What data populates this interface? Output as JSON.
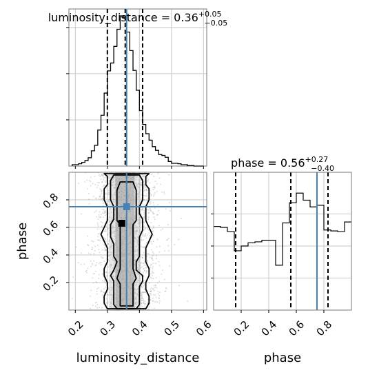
{
  "chart_data": {
    "type": "corner",
    "parameters": [
      "luminosity_distance",
      "phase"
    ],
    "truths": {
      "luminosity_distance": 0.36,
      "phase": 0.75
    },
    "ranges": {
      "luminosity_distance": [
        0.18,
        0.61
      ],
      "phase": [
        0.0,
        1.0
      ]
    },
    "grid": true,
    "panels": [
      {
        "name": "luminosity_distance-hist",
        "type": "step-histogram",
        "title": {
          "prefix": "luminosity_distance = 0.36",
          "sup": "+0.05",
          "sub": "−0.05"
        },
        "median": 0.36,
        "quantiles": [
          0.3,
          0.36,
          0.41
        ],
        "bin_edges": [
          0.19,
          0.2,
          0.21,
          0.22,
          0.23,
          0.24,
          0.25,
          0.26,
          0.27,
          0.28,
          0.29,
          0.3,
          0.31,
          0.32,
          0.33,
          0.34,
          0.35,
          0.36,
          0.37,
          0.38,
          0.39,
          0.4,
          0.41,
          0.42,
          0.43,
          0.44,
          0.45,
          0.46,
          0.47,
          0.48,
          0.49,
          0.5,
          0.51,
          0.52,
          0.53,
          0.54,
          0.55,
          0.56,
          0.57,
          0.58,
          0.59,
          0.6
        ],
        "counts": [
          3,
          3,
          5,
          8,
          12,
          18,
          33,
          45,
          78,
          110,
          158,
          206,
          223,
          259,
          296,
          325,
          322,
          290,
          250,
          207,
          164,
          120,
          90,
          70,
          56,
          42,
          34,
          25,
          23,
          19,
          10,
          6,
          6,
          5,
          3,
          3,
          1,
          1,
          0,
          0,
          0
        ],
        "ylim": [
          0,
          340
        ],
        "yticks": [
          0,
          100,
          200,
          300
        ]
      },
      {
        "name": "phase-hist",
        "type": "step-histogram",
        "title": {
          "prefix": "phase = 0.56",
          "sup": "+0.27",
          "sub": "−0.40"
        },
        "median": 0.56,
        "quantiles": [
          0.16,
          0.56,
          0.83
        ],
        "bin_edges": [
          0.0,
          0.05,
          0.1,
          0.15,
          0.2,
          0.25,
          0.3,
          0.35,
          0.4,
          0.45,
          0.5,
          0.55,
          0.6,
          0.65,
          0.7,
          0.75,
          0.8,
          0.85,
          0.9,
          0.95,
          1.0
        ],
        "counts": [
          261,
          258,
          245,
          185,
          200,
          210,
          213,
          218,
          218,
          140,
          272,
          335,
          365,
          343,
          322,
          327,
          250,
          247,
          245,
          275
        ],
        "ylim": [
          0,
          430
        ],
        "yticks": [
          100,
          200,
          300
        ]
      },
      {
        "name": "2d-density",
        "type": "contour-2d",
        "x_param": "luminosity_distance",
        "y_param": "phase",
        "xticks": [
          0.2,
          0.3,
          0.4,
          0.5,
          0.6
        ],
        "yticks": [
          0.2,
          0.4,
          0.6,
          0.8
        ],
        "point_cloud": {
          "center_x": 0.36,
          "sigma_x": 0.05,
          "n": 2000
        },
        "density_column_x": [
          0.325,
          0.385
        ],
        "contour_levels": [
          {
            "name": "inner",
            "x_left": [
              0.34,
              0.34,
              0.34,
              0.34,
              0.34,
              0.33,
              0.34,
              0.34,
              0.34,
              0.34,
              0.34,
              0.34,
              0.34,
              0.33,
              0.33,
              0.33,
              0.33,
              0.34
            ],
            "x_right": [
              0.38,
              0.38,
              0.38,
              0.38,
              0.38,
              0.39,
              0.38,
              0.38,
              0.38,
              0.38,
              0.38,
              0.38,
              0.38,
              0.39,
              0.39,
              0.39,
              0.39,
              0.38
            ],
            "y": [
              0.03,
              0.06,
              0.09,
              0.14,
              0.19,
              0.23,
              0.3,
              0.35,
              0.43,
              0.47,
              0.53,
              0.57,
              0.62,
              0.65,
              0.73,
              0.79,
              0.87,
              0.93
            ]
          },
          {
            "name": "middle",
            "x_left": [
              0.33,
              0.32,
              0.32,
              0.32,
              0.32,
              0.32,
              0.31,
              0.32,
              0.33,
              0.32,
              0.32,
              0.32,
              0.31,
              0.31,
              0.31,
              0.32,
              0.32,
              0.32,
              0.31,
              0.31,
              0.31,
              0.31,
              0.32
            ],
            "x_right": [
              0.39,
              0.4,
              0.4,
              0.4,
              0.4,
              0.41,
              0.41,
              0.39,
              0.39,
              0.4,
              0.4,
              0.4,
              0.4,
              0.41,
              0.41,
              0.41,
              0.4,
              0.4,
              0.41,
              0.41,
              0.41,
              0.41,
              0.4
            ],
            "y": [
              0.01,
              0.04,
              0.08,
              0.13,
              0.17,
              0.21,
              0.25,
              0.29,
              0.35,
              0.39,
              0.44,
              0.48,
              0.53,
              0.58,
              0.62,
              0.66,
              0.7,
              0.75,
              0.8,
              0.85,
              0.9,
              0.94,
              0.98
            ]
          },
          {
            "name": "outer",
            "x_left": [
              0.3,
              0.29,
              0.29,
              0.3,
              0.3,
              0.29,
              0.29,
              0.3,
              0.3,
              0.3,
              0.29,
              0.28,
              0.29,
              0.3,
              0.3,
              0.3,
              0.29,
              0.29,
              0.29,
              0.3,
              0.3,
              0.3,
              0.29
            ],
            "x_right": [
              0.42,
              0.43,
              0.43,
              0.42,
              0.42,
              0.43,
              0.43,
              0.42,
              0.42,
              0.42,
              0.43,
              0.44,
              0.43,
              0.42,
              0.42,
              0.42,
              0.43,
              0.43,
              0.43,
              0.42,
              0.42,
              0.42,
              0.43
            ],
            "y": [
              0.01,
              0.05,
              0.1,
              0.15,
              0.2,
              0.25,
              0.3,
              0.35,
              0.4,
              0.45,
              0.5,
              0.55,
              0.6,
              0.65,
              0.7,
              0.75,
              0.8,
              0.85,
              0.88,
              0.91,
              0.94,
              0.97,
              0.99
            ]
          }
        ],
        "peak_marker": {
          "x": 0.345,
          "y": 0.63
        }
      }
    ],
    "xlabels": {
      "luminosity_distance": "luminosity_distance",
      "phase": "phase"
    },
    "ylabels": {
      "phase": "phase"
    },
    "phase_xticks": [
      0.2,
      0.4,
      0.6,
      0.8
    ],
    "colors": {
      "truth": "#4682b4",
      "hist": "#000000",
      "grid": "#c8c8c8",
      "scatter": "#9a9a9a"
    }
  }
}
